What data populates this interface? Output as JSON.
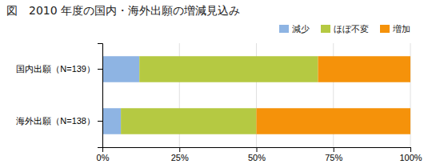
{
  "chart_data": {
    "type": "bar",
    "orientation": "horizontal",
    "stacked": true,
    "title": "図　2010 年度の国内・海外出願の増減見込み",
    "categories": [
      "国内出願（N=139）",
      "海外出願（N=138）"
    ],
    "series": [
      {
        "name": "減少",
        "color": "#8eb4e3",
        "values": [
          12,
          6
        ]
      },
      {
        "name": "ほぼ不変",
        "color": "#b5c942",
        "values": [
          58,
          44
        ]
      },
      {
        "name": "増加",
        "color": "#f5920a",
        "values": [
          30,
          50
        ]
      }
    ],
    "xlim": [
      0,
      100
    ],
    "xticks": [
      {
        "value": 0,
        "label": "0%"
      },
      {
        "value": 25,
        "label": "25%"
      },
      {
        "value": 50,
        "label": "50%"
      },
      {
        "value": 75,
        "label": "75%"
      },
      {
        "value": 100,
        "label": "100%"
      }
    ],
    "grid": true,
    "legend": "upper right"
  }
}
